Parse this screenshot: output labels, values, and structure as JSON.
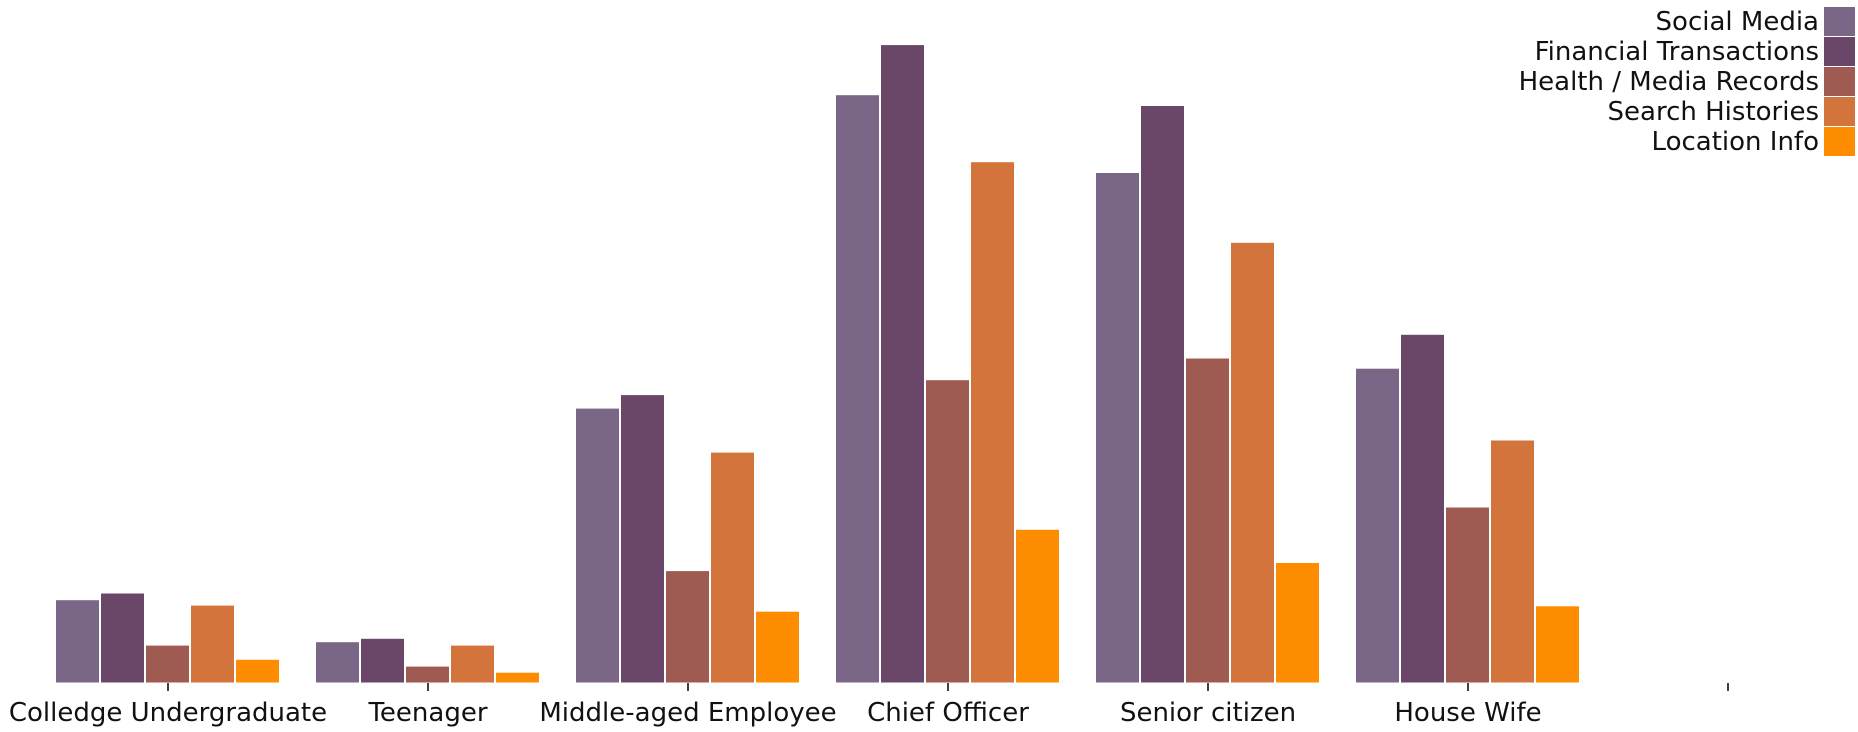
{
  "chart_data": {
    "type": "bar",
    "title": "",
    "xlabel": "",
    "ylabel": "",
    "ylim": [
      0,
      100
    ],
    "grid": false,
    "legend_position": "top-right",
    "categories": [
      "Colledge Undergraduate",
      "Teenager",
      "Middle-aged Employee",
      "Chief Officer",
      "Senior citizen",
      "House Wife",
      ""
    ],
    "series": [
      {
        "name": "Social Media",
        "color": "#7a6686",
        "values": [
          12.3,
          6.1,
          40.6,
          86.9,
          75.4,
          46.5,
          null
        ]
      },
      {
        "name": "Financial Transactions",
        "color": "#6a4668",
        "values": [
          13.3,
          6.6,
          42.6,
          94.3,
          85.3,
          51.5,
          null
        ]
      },
      {
        "name": "Health / Media Records",
        "color": "#9f5b52",
        "values": [
          5.6,
          2.5,
          16.6,
          44.8,
          48.0,
          26.0,
          null
        ]
      },
      {
        "name": "Search Histories",
        "color": "#d2743b",
        "values": [
          11.5,
          5.6,
          34.1,
          77.0,
          65.1,
          35.9,
          null
        ]
      },
      {
        "name": "Location Info",
        "color": "#fe8c00",
        "values": [
          3.5,
          1.6,
          10.6,
          22.7,
          17.8,
          11.4,
          null
        ]
      }
    ]
  }
}
